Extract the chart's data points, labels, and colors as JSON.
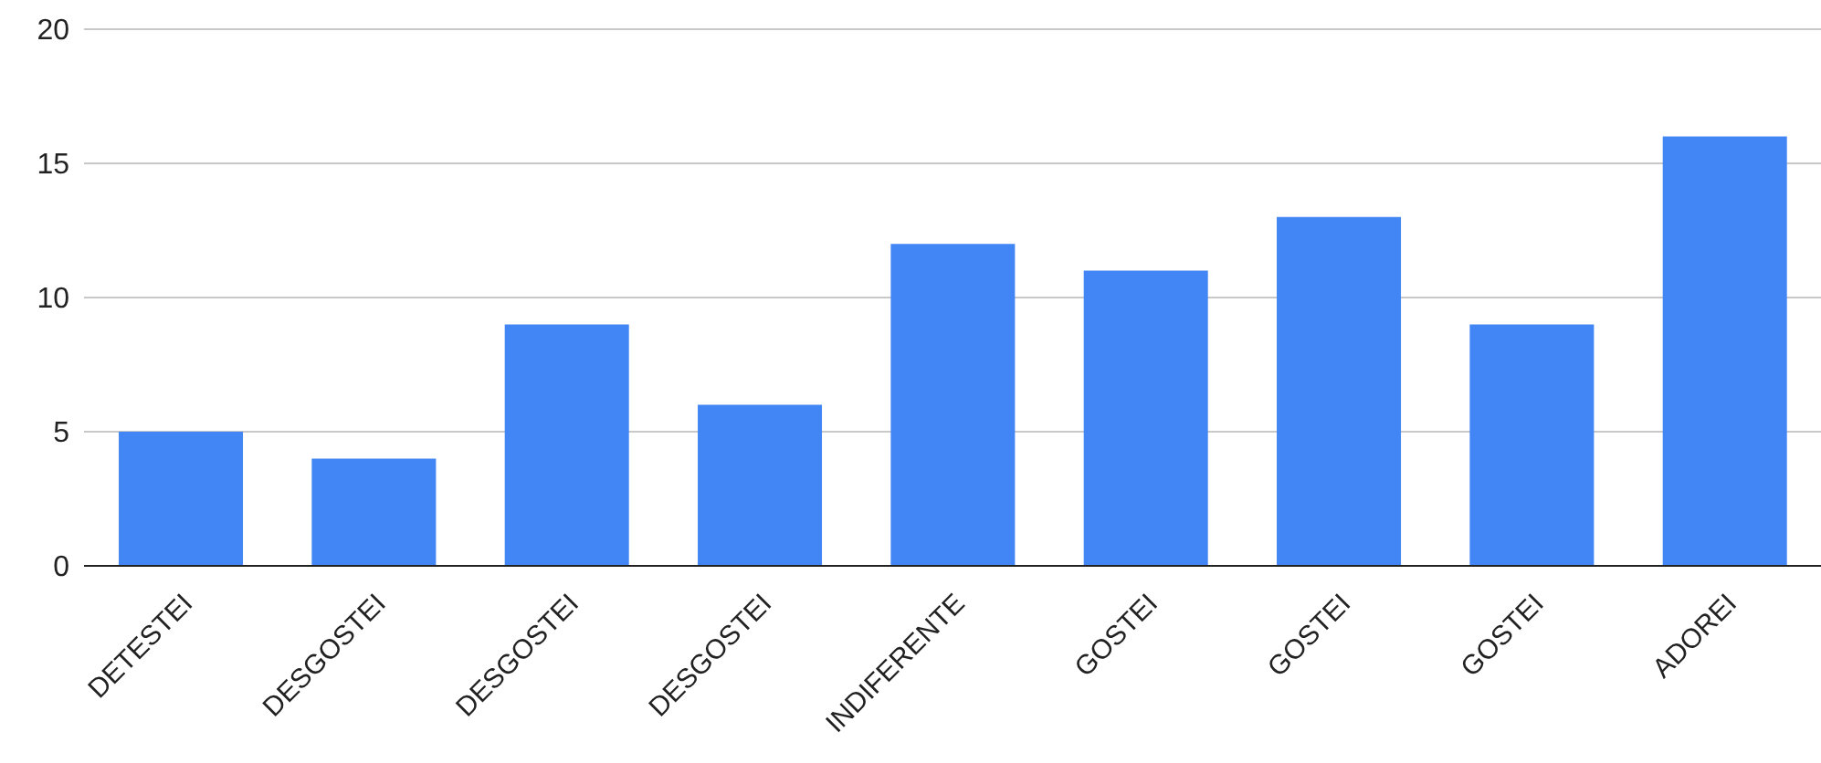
{
  "chart_data": {
    "type": "bar",
    "categories": [
      "DETESTEI",
      "DESGOSTEI",
      "DESGOSTEI",
      "DESGOSTEI",
      "INDIFERENTE",
      "GOSTEI",
      "GOSTEI",
      "GOSTEI",
      "ADOREI"
    ],
    "values": [
      5,
      4,
      9,
      6,
      12,
      11,
      13,
      9,
      16
    ],
    "color": "#4285f4",
    "ylim": [
      0,
      20
    ],
    "yticks": [
      0,
      5,
      10,
      15,
      20
    ],
    "grid": "y",
    "legend": false
  }
}
